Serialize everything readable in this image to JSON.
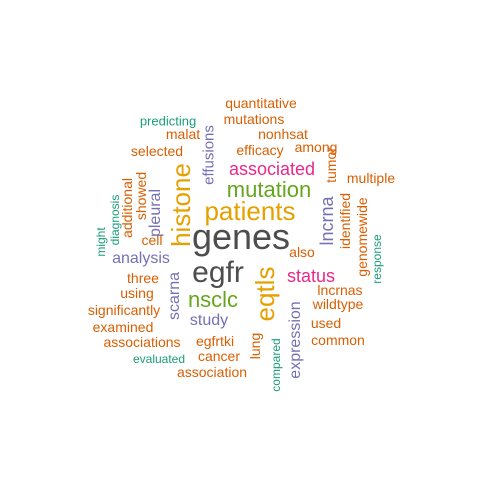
{
  "colors": {
    "gray": "#4d4d4d",
    "gold": "#e6a000",
    "green": "#66a61e",
    "purple": "#7570b3",
    "orange": "#d95f02",
    "magenta": "#e7298a",
    "teal": "#1b9e77"
  },
  "words": {
    "genes": "genes",
    "egfr": "egfr",
    "patients": "patients",
    "eqtls": "eqtls",
    "histone": "histone",
    "mutation": "mutation",
    "associated": "associated",
    "nsclc": "nsclc",
    "status": "status",
    "lncrna": "lncrna",
    "expression": "expression",
    "analysis": "analysis",
    "pleural": "pleural",
    "scarna": "scarna",
    "study": "study",
    "effusions": "effusions",
    "quantitative": "quantitative",
    "mutations": "mutations",
    "nonhsat": "nonhsat",
    "malat": "malat",
    "predicting": "predicting",
    "among": "among",
    "efficacy": "efficacy",
    "selected": "selected",
    "tumor": "tumor",
    "multiple": "multiple",
    "identified": "identified",
    "genomewide": "genomewide",
    "response": "response",
    "lncrnas": "lncrnas",
    "wildtype": "wildtype",
    "used": "used",
    "common": "common",
    "also": "also",
    "compared": "compared",
    "lung": "lung",
    "cancer": "cancer",
    "association": "association",
    "evaluated": "evaluated",
    "associations": "associations",
    "egfrtki": "egfrtki",
    "examined": "examined",
    "significantly": "significantly",
    "using": "using",
    "three": "three",
    "cell": "cell",
    "showed": "showed",
    "additional": "additional",
    "diagnosis": "diagnosis",
    "might": "might"
  }
}
